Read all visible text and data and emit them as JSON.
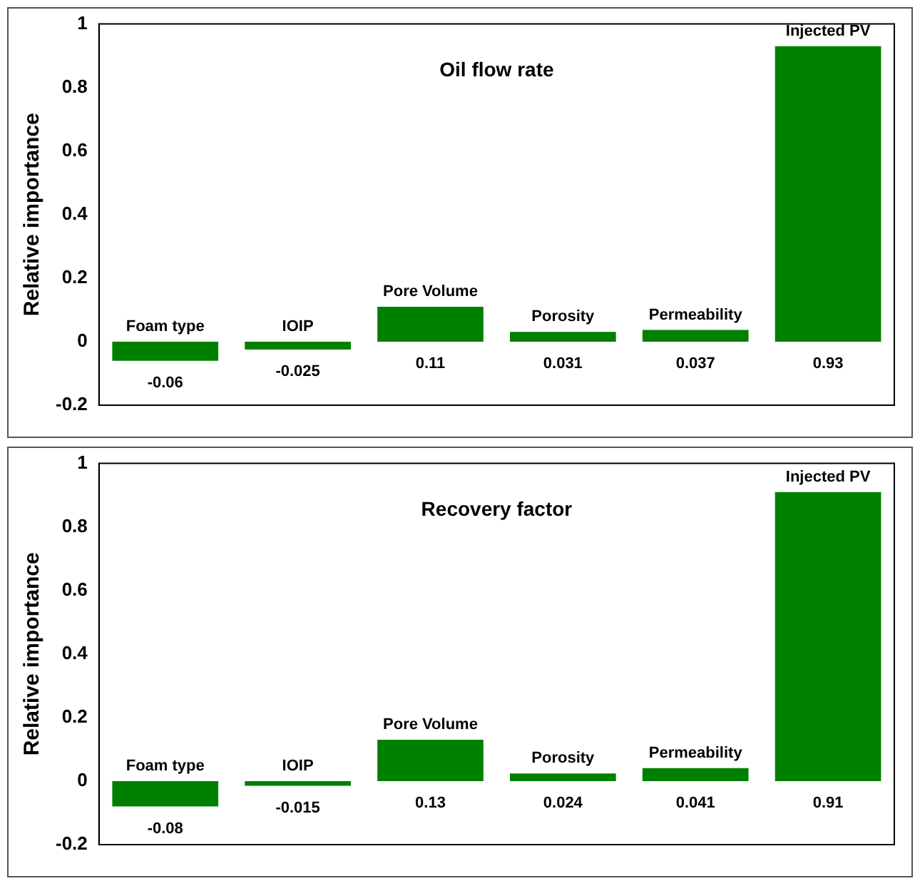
{
  "chart_data": [
    {
      "type": "bar",
      "title": "Oil flow rate",
      "ylabel": "Relative importance",
      "categories": [
        "Foam type",
        "IOIP",
        "Pore Volume",
        "Porosity",
        "Permeability",
        "Injected PV"
      ],
      "series": [
        {
          "color": "#008000",
          "values": [
            -0.06,
            -0.025,
            0.11,
            0.031,
            0.037,
            0.93
          ]
        }
      ],
      "ylim": [
        -0.2,
        1
      ],
      "yticks": [
        -0.2,
        0,
        0.2,
        0.4,
        0.6,
        0.8,
        1
      ],
      "data_labels": true,
      "grid": false,
      "legend": false,
      "tick_labels": "y"
    },
    {
      "type": "bar",
      "title": "Recovery factor",
      "ylabel": "Relative importance",
      "categories": [
        "Foam type",
        "IOIP",
        "Pore Volume",
        "Porosity",
        "Permeability",
        "Injected PV"
      ],
      "series": [
        {
          "color": "#008000",
          "values": [
            -0.08,
            -0.015,
            0.13,
            0.024,
            0.041,
            0.91
          ]
        }
      ],
      "ylim": [
        -0.2,
        1
      ],
      "yticks": [
        -0.2,
        0,
        0.2,
        0.4,
        0.6,
        0.8,
        1
      ],
      "data_labels": true,
      "grid": false,
      "legend": false,
      "tick_labels": "y"
    }
  ]
}
